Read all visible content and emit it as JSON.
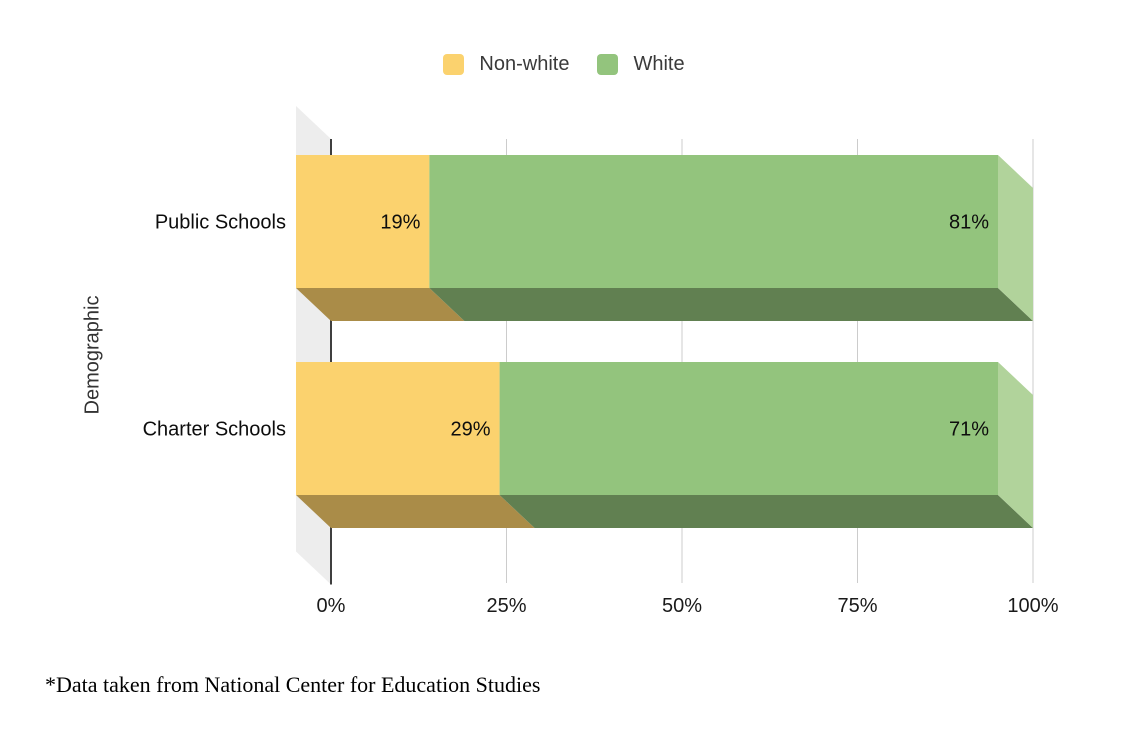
{
  "canvas": {
    "background": "#ffffff"
  },
  "legend": {
    "items": [
      {
        "label": "Non-white",
        "color": "#FBD26E"
      },
      {
        "label": "White",
        "color": "#93C47D"
      }
    ]
  },
  "chart_data": {
    "type": "bar",
    "variant": "horizontal-stacked-3d",
    "title": "",
    "categories": [
      "Public Schools",
      "Charter Schools"
    ],
    "series": [
      {
        "name": "Non-white",
        "values": [
          19,
          29
        ],
        "labels": [
          "19%",
          "29%"
        ],
        "color": "#FBD26E",
        "shade_dark": "#AA8C48",
        "shade_light": "#FFE49E"
      },
      {
        "name": "White",
        "values": [
          81,
          71
        ],
        "labels": [
          "81%",
          "71%"
        ],
        "color": "#93C47D",
        "shade_dark": "#618051",
        "shade_light": "#B1D39B"
      }
    ],
    "xlabel": "",
    "ylabel": "Demographic",
    "xlim": [
      0,
      100
    ],
    "x_ticks": [
      {
        "value": 0,
        "label": "0%"
      },
      {
        "value": 25,
        "label": "25%"
      },
      {
        "value": 50,
        "label": "50%"
      },
      {
        "value": 75,
        "label": "75%"
      },
      {
        "value": 100,
        "label": "100%"
      }
    ],
    "grid": true,
    "legend_position": "top",
    "colors": {
      "wall": "#EDEDED",
      "gridline": "#CCCCCC",
      "axis_line": "#3F3F3F",
      "value_label": "#0d0d0d",
      "tick_label": "#1a1a1a",
      "category_label": "#0d0d0d",
      "axis_title": "#333333"
    }
  },
  "footnote": "*Data taken from National Center for Education Studies"
}
